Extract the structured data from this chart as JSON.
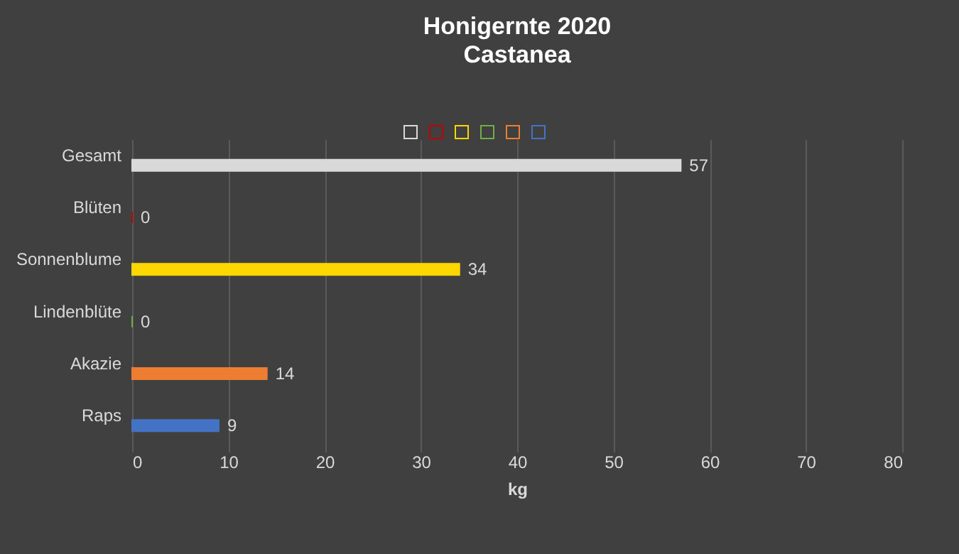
{
  "chart_data": {
    "type": "bar",
    "orientation": "horizontal",
    "title": "Honigernte 2020",
    "subtitle": "Castanea",
    "xlabel": "kg",
    "categories": [
      "Gesamt",
      "Blüten",
      "Sonnenblume",
      "Lindenblüte",
      "Akazie",
      "Raps"
    ],
    "series": [
      {
        "color": "#d9d9d9",
        "values": [
          57,
          null,
          null,
          null,
          null,
          null
        ]
      },
      {
        "color": "#c00000",
        "values": [
          null,
          0,
          null,
          null,
          null,
          null
        ]
      },
      {
        "color": "#ffd700",
        "values": [
          null,
          null,
          34,
          null,
          null,
          null
        ]
      },
      {
        "color": "#70ad47",
        "values": [
          null,
          null,
          null,
          0,
          null,
          null
        ]
      },
      {
        "color": "#ed7d31",
        "values": [
          null,
          null,
          null,
          null,
          14,
          null
        ]
      },
      {
        "color": "#4472c4",
        "values": [
          null,
          null,
          null,
          null,
          null,
          9
        ]
      }
    ],
    "xlim": [
      0,
      80
    ],
    "xticks": [
      0,
      10,
      20,
      30,
      40,
      50,
      60,
      70,
      80
    ],
    "grid": "x",
    "data_labels": true
  }
}
